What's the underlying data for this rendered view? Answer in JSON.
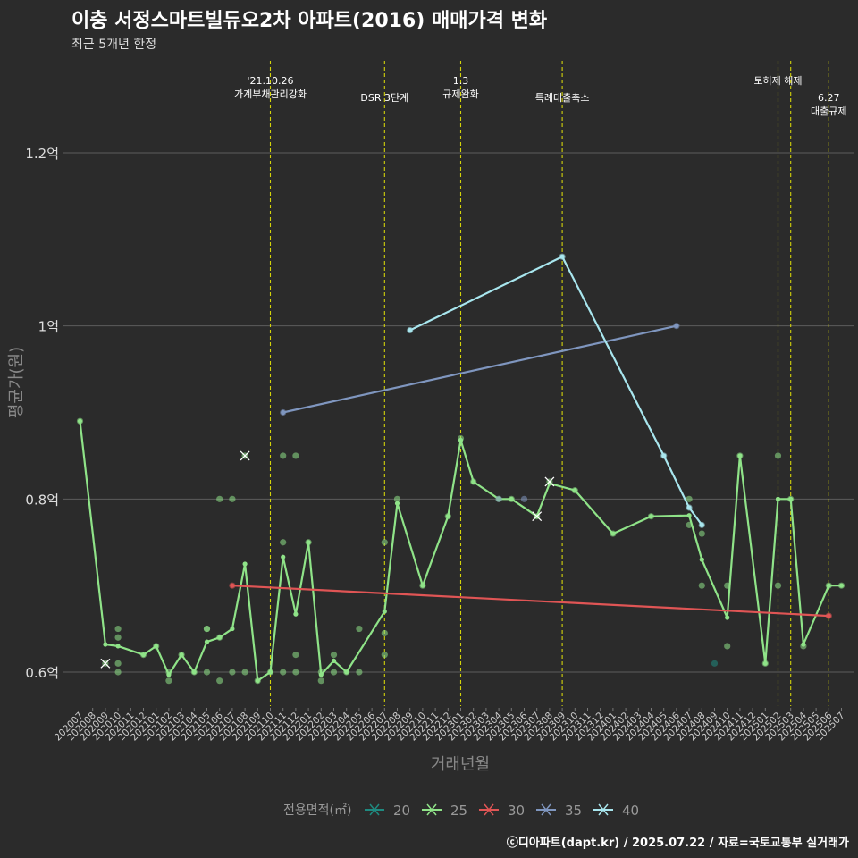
{
  "chart_data": {
    "type": "line",
    "title": "이충 서정스마트빌듀오2차 아파트(2016) 매매가격 변화",
    "subtitle": "최근 5개년 한정",
    "xlabel": "거래년월",
    "ylabel": "평균가(원)",
    "caption": "ⓒ디아파트(dapt.kr) / 2025.07.22 / 자료=국토교통부 실거래가",
    "legend_title": "전용면적(㎡)",
    "legend_position": "bottom",
    "grid": true,
    "ylim": [
      0.56,
      1.32
    ],
    "y_unit": "억",
    "y_ticks": [
      0.6,
      0.8,
      1.0,
      1.2
    ],
    "y_tick_labels": [
      "0.6억",
      "0.8억",
      "1억",
      "1.2억"
    ],
    "categories": [
      "202007",
      "202008",
      "202009",
      "202010",
      "202011",
      "202012",
      "202101",
      "202102",
      "202103",
      "202104",
      "202105",
      "202106",
      "202107",
      "202108",
      "202109",
      "202110",
      "202111",
      "202112",
      "202201",
      "202202",
      "202203",
      "202204",
      "202205",
      "202206",
      "202207",
      "202208",
      "202209",
      "202210",
      "202211",
      "202212",
      "202301",
      "202302",
      "202303",
      "202304",
      "202305",
      "202306",
      "202307",
      "202308",
      "202309",
      "202310",
      "202311",
      "202312",
      "202401",
      "202402",
      "202403",
      "202404",
      "202405",
      "202406",
      "202407",
      "202408",
      "202409",
      "202410",
      "202411",
      "202412",
      "202501",
      "202502",
      "202503",
      "202504",
      "202505",
      "202506",
      "202507"
    ],
    "series": [
      {
        "name": "20",
        "color": "#1f8a80",
        "line": [],
        "points": [
          [
            "202409",
            0.61
          ]
        ]
      },
      {
        "name": "25",
        "color": "#8fe388",
        "line": [
          [
            "202007",
            0.89
          ],
          [
            "202009",
            0.632
          ],
          [
            "202010",
            0.63
          ],
          [
            "202012",
            0.62
          ],
          [
            "202101",
            0.63
          ],
          [
            "202102",
            0.597
          ],
          [
            "202103",
            0.62
          ],
          [
            "202104",
            0.6
          ],
          [
            "202105",
            0.635
          ],
          [
            "202106",
            0.64
          ],
          [
            "202107",
            0.65
          ],
          [
            "202108",
            0.725
          ],
          [
            "202109",
            0.59
          ],
          [
            "202110",
            0.6
          ],
          [
            "202111",
            0.733
          ],
          [
            "202112",
            0.667
          ],
          [
            "202201",
            0.75
          ],
          [
            "202202",
            0.597
          ],
          [
            "202203",
            0.613
          ],
          [
            "202204",
            0.6
          ],
          [
            "202207",
            0.67
          ],
          [
            "202208",
            0.795
          ],
          [
            "202210",
            0.7
          ],
          [
            "202212",
            0.78
          ],
          [
            "202301",
            0.868
          ],
          [
            "202302",
            0.82
          ],
          [
            "202304",
            0.8
          ],
          [
            "202305",
            0.8
          ],
          [
            "202307",
            0.78
          ],
          [
            "202308",
            0.818
          ],
          [
            "202310",
            0.81
          ],
          [
            "202401",
            0.76
          ],
          [
            "202404",
            0.78
          ],
          [
            "202407",
            0.781
          ],
          [
            "202408",
            0.73
          ],
          [
            "202410",
            0.663
          ],
          [
            "202411",
            0.85
          ],
          [
            "202501",
            0.61
          ],
          [
            "202502",
            0.8
          ],
          [
            "202503",
            0.8
          ],
          [
            "202504",
            0.632
          ],
          [
            "202506",
            0.7
          ],
          [
            "202507",
            0.7
          ]
        ],
        "points": [
          [
            "202007",
            0.89
          ],
          [
            "202009",
            0.61
          ],
          [
            "202010",
            0.65
          ],
          [
            "202010",
            0.64
          ],
          [
            "202010",
            0.6
          ],
          [
            "202010",
            0.61
          ],
          [
            "202012",
            0.62
          ],
          [
            "202101",
            0.63
          ],
          [
            "202102",
            0.6
          ],
          [
            "202102",
            0.59
          ],
          [
            "202103",
            0.62
          ],
          [
            "202104",
            0.6
          ],
          [
            "202105",
            0.65
          ],
          [
            "202105",
            0.6
          ],
          [
            "202105",
            0.65
          ],
          [
            "202106",
            0.64
          ],
          [
            "202106",
            0.8
          ],
          [
            "202106",
            0.59
          ],
          [
            "202107",
            0.8
          ],
          [
            "202107",
            0.6
          ],
          [
            "202108",
            0.85
          ],
          [
            "202108",
            0.6
          ],
          [
            "202109",
            0.59
          ],
          [
            "202110",
            0.6
          ],
          [
            "202111",
            0.85
          ],
          [
            "202111",
            0.75
          ],
          [
            "202111",
            0.6
          ],
          [
            "202112",
            0.85
          ],
          [
            "202112",
            0.62
          ],
          [
            "202112",
            0.6
          ],
          [
            "202201",
            0.75
          ],
          [
            "202202",
            0.6
          ],
          [
            "202202",
            0.59
          ],
          [
            "202203",
            0.62
          ],
          [
            "202203",
            0.6
          ],
          [
            "202204",
            0.6
          ],
          [
            "202205",
            0.65
          ],
          [
            "202205",
            0.6
          ],
          [
            "202207",
            0.75
          ],
          [
            "202207",
            0.645
          ],
          [
            "202207",
            0.62
          ],
          [
            "202208",
            0.8
          ],
          [
            "202210",
            0.7
          ],
          [
            "202212",
            0.78
          ],
          [
            "202301",
            0.87
          ],
          [
            "202302",
            0.82
          ],
          [
            "202304",
            0.8
          ],
          [
            "202305",
            0.8
          ],
          [
            "202307",
            0.78
          ],
          [
            "202308",
            0.82
          ],
          [
            "202310",
            0.81
          ],
          [
            "202401",
            0.76
          ],
          [
            "202404",
            0.78
          ],
          [
            "202407",
            0.8
          ],
          [
            "202407",
            0.77
          ],
          [
            "202408",
            0.76
          ],
          [
            "202408",
            0.7
          ],
          [
            "202410",
            0.7
          ],
          [
            "202410",
            0.63
          ],
          [
            "202411",
            0.85
          ],
          [
            "202501",
            0.61
          ],
          [
            "202502",
            0.85
          ],
          [
            "202502",
            0.7
          ],
          [
            "202503",
            0.8
          ],
          [
            "202504",
            0.63
          ],
          [
            "202506",
            0.7
          ],
          [
            "202507",
            0.7
          ]
        ],
        "cross_points": [
          [
            "202009",
            0.61
          ],
          [
            "202108",
            0.85
          ],
          [
            "202308",
            0.82
          ],
          [
            "202307",
            0.78
          ]
        ]
      },
      {
        "name": "30",
        "color": "#e05555",
        "line": [
          [
            "202107",
            0.7
          ],
          [
            "202506",
            0.665
          ]
        ],
        "points": [
          [
            "202107",
            0.7
          ],
          [
            "202506",
            0.665
          ]
        ]
      },
      {
        "name": "35",
        "color": "#7f96bf",
        "line": [
          [
            "202111",
            0.9
          ],
          [
            "202406",
            1.0
          ]
        ],
        "points": [
          [
            "202111",
            0.9
          ],
          [
            "202406",
            1.0
          ],
          [
            "202304",
            0.8
          ],
          [
            "202306",
            0.8
          ]
        ]
      },
      {
        "name": "40",
        "color": "#a8e6ee",
        "line": [
          [
            "202209",
            0.995
          ],
          [
            "202309",
            1.08
          ],
          [
            "202405",
            0.85
          ],
          [
            "202407",
            0.79
          ],
          [
            "202408",
            0.77
          ]
        ],
        "points": [
          [
            "202209",
            0.995
          ],
          [
            "202309",
            1.08
          ],
          [
            "202405",
            0.85
          ],
          [
            "202407",
            0.79
          ],
          [
            "202408",
            0.77
          ]
        ]
      }
    ],
    "events": [
      {
        "x": "202110",
        "text": [
          "'21.10.26",
          "가계부채관리강화"
        ],
        "row": 0
      },
      {
        "x": "202207",
        "text": [
          "DSR 3단계"
        ],
        "row": 1
      },
      {
        "x": "202301",
        "text": [
          "1.3",
          "규제완화"
        ],
        "row": 0
      },
      {
        "x": "202309",
        "text": [
          "특례대출축소"
        ],
        "row": 1
      },
      {
        "x": "202502",
        "text": [
          "토허제 해제"
        ],
        "row": 0,
        "anchor": "middle-offset"
      },
      {
        "x": "202503",
        "text": [],
        "row": 0
      },
      {
        "x": "202506",
        "text": [
          "6.27",
          "대출규제"
        ],
        "row": 1
      }
    ]
  }
}
